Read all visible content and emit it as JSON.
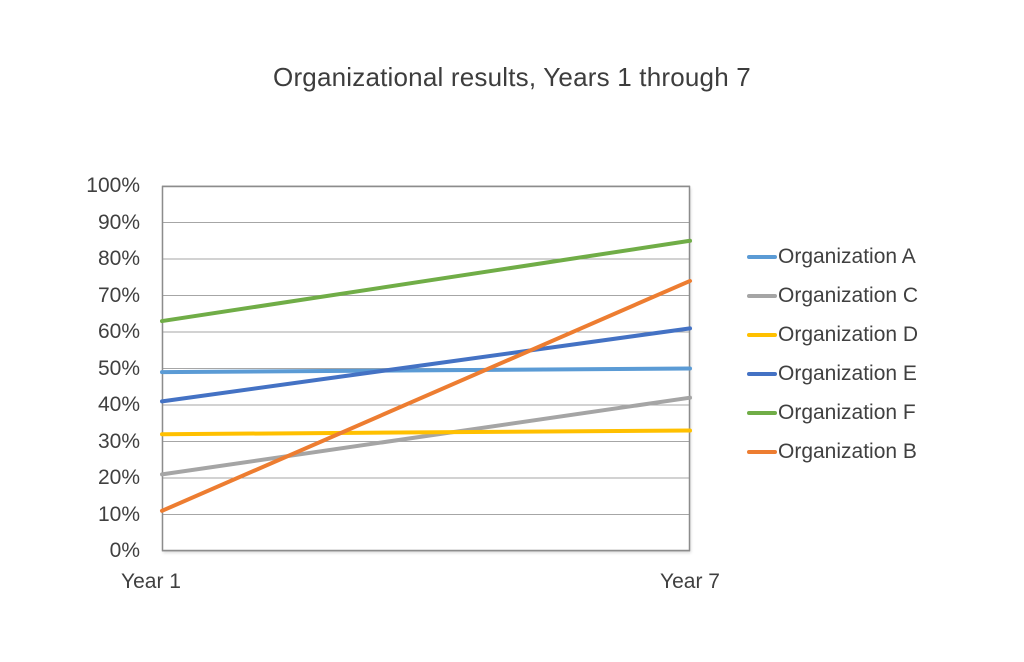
{
  "chart_data": {
    "type": "line",
    "title": "Organizational results, Years 1 through 7",
    "x_labels": [
      "Year 1",
      "Year 7"
    ],
    "y_ticks": [
      "100%",
      "90%",
      "80%",
      "70%",
      "60%",
      "50%",
      "40%",
      "30%",
      "20%",
      "10%",
      "0%"
    ],
    "ylim": [
      0,
      100
    ],
    "grid": true,
    "legend_position": "right",
    "series": [
      {
        "name": "Organization A",
        "color": "#5B9BD5",
        "values": [
          49,
          50
        ]
      },
      {
        "name": "Organization C",
        "color": "#A5A5A5",
        "values": [
          21,
          42
        ]
      },
      {
        "name": "Organization D",
        "color": "#FFC000",
        "values": [
          32,
          33
        ]
      },
      {
        "name": "Organization E",
        "color": "#4472C4",
        "values": [
          41,
          61
        ]
      },
      {
        "name": "Organization F",
        "color": "#70AD47",
        "values": [
          63,
          85
        ]
      },
      {
        "name": "Organization B",
        "color": "#ED7D31",
        "values": [
          11,
          74
        ]
      }
    ]
  },
  "style": {
    "gridline_color": "#a6a6a6",
    "plot_border_color": "#8c8c8c",
    "text_color": "#404040",
    "background_color": "#ffffff",
    "series_line_width": 4
  }
}
